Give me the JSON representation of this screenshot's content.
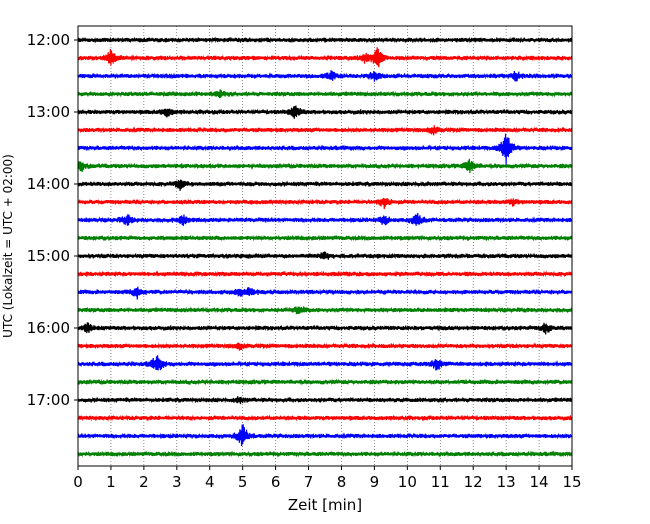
{
  "chart_data": {
    "type": "line",
    "title": "",
    "xlabel": "Zeit  [min]",
    "ylabel": "UTC (Lokalzeit = UTC + 02:00)",
    "xlim": [
      0,
      15
    ],
    "x_ticks": [
      "0",
      "1",
      "2",
      "3",
      "4",
      "5",
      "6",
      "7",
      "8",
      "9",
      "10",
      "11",
      "12",
      "13",
      "14",
      "15"
    ],
    "y_ticks": [
      "12:00",
      "13:00",
      "14:00",
      "15:00",
      "16:00",
      "17:00"
    ],
    "y_tick_rows": [
      0,
      4,
      8,
      12,
      16,
      20
    ],
    "rows_per_hour": 4,
    "minutes_per_row": 15,
    "grid": "vertical dotted",
    "row_colors": [
      "#000000",
      "#ff0000",
      "#0000ff",
      "#008000"
    ],
    "traces": [
      {
        "row": 0,
        "start": "12:00",
        "events": []
      },
      {
        "row": 1,
        "start": "12:15",
        "events": [
          {
            "minute": 1.0,
            "amplitude": 0.9
          },
          {
            "minute": 8.7,
            "amplitude": 0.6
          },
          {
            "minute": 9.1,
            "amplitude": 1.1
          }
        ]
      },
      {
        "row": 2,
        "start": "12:30",
        "events": [
          {
            "minute": 7.7,
            "amplitude": 0.5
          },
          {
            "minute": 9.0,
            "amplitude": 0.5
          },
          {
            "minute": 13.3,
            "amplitude": 0.5
          }
        ]
      },
      {
        "row": 3,
        "start": "12:45",
        "events": [
          {
            "minute": 4.3,
            "amplitude": 0.4
          }
        ]
      },
      {
        "row": 4,
        "start": "13:00",
        "events": [
          {
            "minute": 2.7,
            "amplitude": 0.5
          },
          {
            "minute": 6.6,
            "amplitude": 0.7
          }
        ]
      },
      {
        "row": 5,
        "start": "13:15",
        "events": [
          {
            "minute": 10.8,
            "amplitude": 0.4
          }
        ]
      },
      {
        "row": 6,
        "start": "13:30",
        "events": [
          {
            "minute": 13.0,
            "amplitude": 2.0
          }
        ]
      },
      {
        "row": 7,
        "start": "13:45",
        "events": [
          {
            "minute": 0.1,
            "amplitude": 0.6
          },
          {
            "minute": 11.9,
            "amplitude": 0.7
          }
        ]
      },
      {
        "row": 8,
        "start": "14:00",
        "events": [
          {
            "minute": 3.1,
            "amplitude": 0.5
          }
        ]
      },
      {
        "row": 9,
        "start": "14:15",
        "events": [
          {
            "minute": 9.3,
            "amplitude": 0.6
          },
          {
            "minute": 13.2,
            "amplitude": 0.3
          }
        ]
      },
      {
        "row": 10,
        "start": "14:30",
        "events": [
          {
            "minute": 1.5,
            "amplitude": 0.6
          },
          {
            "minute": 3.2,
            "amplitude": 0.5
          },
          {
            "minute": 9.3,
            "amplitude": 0.5
          },
          {
            "minute": 10.3,
            "amplitude": 0.7
          }
        ]
      },
      {
        "row": 11,
        "start": "14:45",
        "events": []
      },
      {
        "row": 12,
        "start": "15:00",
        "events": [
          {
            "minute": 7.5,
            "amplitude": 0.4
          }
        ]
      },
      {
        "row": 13,
        "start": "15:15",
        "events": []
      },
      {
        "row": 14,
        "start": "15:30",
        "events": [
          {
            "minute": 1.8,
            "amplitude": 0.6
          },
          {
            "minute": 4.9,
            "amplitude": 0.4
          },
          {
            "minute": 5.2,
            "amplitude": 0.5
          }
        ]
      },
      {
        "row": 15,
        "start": "15:45",
        "events": [
          {
            "minute": 6.7,
            "amplitude": 0.5
          }
        ]
      },
      {
        "row": 16,
        "start": "16:00",
        "events": [
          {
            "minute": 0.3,
            "amplitude": 0.5
          },
          {
            "minute": 14.2,
            "amplitude": 0.6
          }
        ]
      },
      {
        "row": 17,
        "start": "16:15",
        "events": [
          {
            "minute": 4.9,
            "amplitude": 0.3
          }
        ]
      },
      {
        "row": 18,
        "start": "16:30",
        "events": [
          {
            "minute": 2.4,
            "amplitude": 1.1
          },
          {
            "minute": 10.9,
            "amplitude": 0.7
          }
        ]
      },
      {
        "row": 19,
        "start": "16:45",
        "events": []
      },
      {
        "row": 20,
        "start": "17:00",
        "events": [
          {
            "minute": 4.9,
            "amplitude": 0.3
          }
        ]
      },
      {
        "row": 21,
        "start": "17:15",
        "events": []
      },
      {
        "row": 22,
        "start": "17:30",
        "events": [
          {
            "minute": 5.0,
            "amplitude": 1.3
          }
        ]
      },
      {
        "row": 23,
        "start": "17:45",
        "events": []
      }
    ]
  }
}
